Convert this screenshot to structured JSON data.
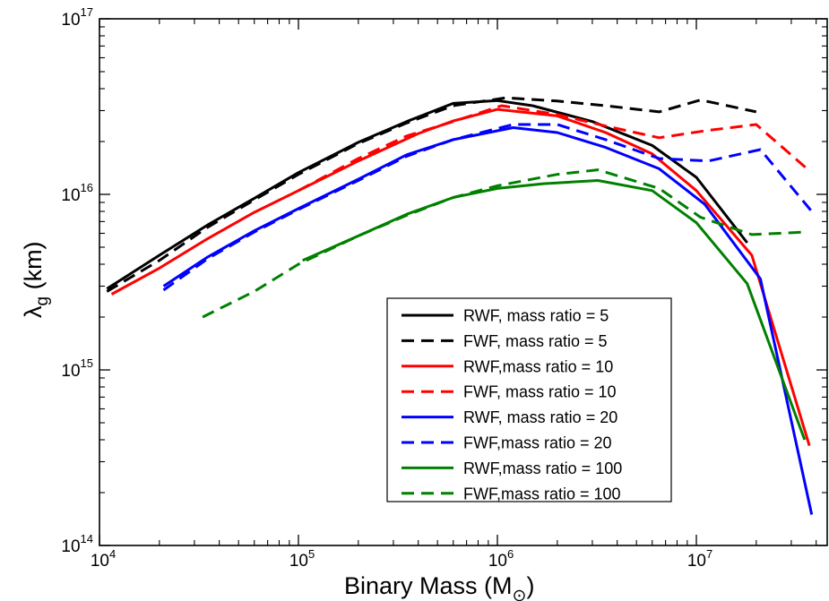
{
  "chart_data": {
    "type": "line",
    "xscale": "log",
    "yscale": "log",
    "xlim": [
      10000,
      50000000
    ],
    "ylim": [
      100000000000000.0,
      1e+17
    ],
    "xlabel": {
      "main": "Binary Mass (M",
      "sub": "⊙",
      "tail": ")"
    },
    "ylabel": {
      "greek": "λ",
      "sub": "g",
      "tail": " (km)"
    },
    "xticks": [
      {
        "value": 10000,
        "base": "10",
        "exp": "4"
      },
      {
        "value": 100000,
        "base": "10",
        "exp": "5"
      },
      {
        "value": 1000000,
        "base": "10",
        "exp": "6"
      },
      {
        "value": 10000000,
        "base": "10",
        "exp": "7"
      }
    ],
    "yticks": [
      {
        "value": 100000000000000.0,
        "base": "10",
        "exp": "14"
      },
      {
        "value": 1000000000000000.0,
        "base": "10",
        "exp": "15"
      },
      {
        "value": 1e+16,
        "base": "10",
        "exp": "16"
      },
      {
        "value": 1e+17,
        "base": "10",
        "exp": "17"
      }
    ],
    "legend_position": "lower-center",
    "series": [
      {
        "name": "RWF, mass ratio = 5",
        "color": "#000000",
        "dash": "solid",
        "x": [
          10900,
          20000,
          35000,
          60000,
          100000,
          200000,
          350000,
          600000,
          1000000,
          1500000,
          3000000,
          6000000,
          10000000,
          18000000
        ],
        "y": [
          2900000000000000.0,
          4500000000000000.0,
          6700000000000000.0,
          9500000000000000.0,
          1.33e+16,
          1.98e+16,
          2.6e+16,
          3.3e+16,
          3.42e+16,
          3.2e+16,
          2.6e+16,
          1.9e+16,
          1.25e+16,
          5300000000000000.0
        ]
      },
      {
        "name": "FWF, mass ratio = 5",
        "color": "#000000",
        "dash": "dashed",
        "x": [
          10900,
          20000,
          35000,
          60000,
          100000,
          200000,
          350000,
          600000,
          1100000,
          2000000,
          3500000,
          6500000,
          10500000,
          20000000
        ],
        "y": [
          2800000000000000.0,
          4200000000000000.0,
          6500000000000000.0,
          9300000000000000.0,
          1.3e+16,
          1.95e+16,
          2.55e+16,
          3.2e+16,
          3.55e+16,
          3.4e+16,
          3.2e+16,
          2.95e+16,
          3.45e+16,
          2.95e+16
        ]
      },
      {
        "name": "RWF,mass ratio = 10",
        "color": "#ff0000",
        "dash": "solid",
        "x": [
          11500,
          20000,
          35000,
          60000,
          100000,
          200000,
          400000,
          600000,
          1000000,
          2000000,
          3500000,
          6000000,
          10000000,
          19000000,
          37000000
        ],
        "y": [
          2700000000000000.0,
          3800000000000000.0,
          5600000000000000.0,
          7900000000000000.0,
          1.05e+16,
          1.55e+16,
          2.22e+16,
          2.62e+16,
          3.05e+16,
          2.8e+16,
          2.25e+16,
          1.7e+16,
          1.05e+16,
          4500000000000000.0,
          370000000000000.0
        ]
      },
      {
        "name": "FWF, mass ratio = 10",
        "color": "#ff0000",
        "dash": "dashed",
        "x": [
          100000,
          200000,
          350000,
          600000,
          1050000,
          2000000,
          3500000,
          6500000,
          11000000,
          20000000,
          36000000
        ],
        "y": [
          1.05e+16,
          1.6e+16,
          2.15e+16,
          2.6e+16,
          3.2e+16,
          2.85e+16,
          2.45e+16,
          2.1e+16,
          2.3e+16,
          2.5e+16,
          1.4e+16
        ]
      },
      {
        "name": "RWF, mass ratio = 20",
        "color": "#0000ff",
        "dash": "solid",
        "x": [
          21000,
          35000,
          60000,
          100000,
          200000,
          350000,
          600000,
          1200000,
          2000000,
          3500000,
          6500000,
          11000000,
          21000000,
          38000000
        ],
        "y": [
          3000000000000000.0,
          4400000000000000.0,
          6200000000000000.0,
          8300000000000000.0,
          1.22e+16,
          1.68e+16,
          2.05e+16,
          2.4e+16,
          2.25e+16,
          1.85e+16,
          1.4e+16,
          8800000000000000.0,
          3300000000000000.0,
          150000000000000.0
        ]
      },
      {
        "name": "FWF,mass ratio = 20",
        "color": "#0000ff",
        "dash": "dashed",
        "x": [
          21000,
          35000,
          60000,
          100000,
          200000,
          350000,
          600000,
          1200000,
          2000000,
          3500000,
          6500000,
          11500000,
          21000000,
          38000000
        ],
        "y": [
          2850000000000000.0,
          4300000000000000.0,
          6100000000000000.0,
          8200000000000000.0,
          1.2e+16,
          1.65e+16,
          2.05e+16,
          2.5e+16,
          2.5e+16,
          2.05e+16,
          1.6e+16,
          1.55e+16,
          1.8e+16,
          8000000000000000.0
        ]
      },
      {
        "name": "RWF,mass ratio = 100",
        "color": "#008000",
        "dash": "solid",
        "x": [
          105000,
          200000,
          350000,
          600000,
          1000000,
          1700000,
          3200000,
          6000000,
          10000000,
          18000000,
          35000000
        ],
        "y": [
          4200000000000000.0,
          5800000000000000.0,
          7700000000000000.0,
          9600000000000000.0,
          1.08e+16,
          1.15e+16,
          1.2e+16,
          1.05e+16,
          6900000000000000.0,
          3100000000000000.0,
          400000000000000.0
        ]
      },
      {
        "name": "FWF,mass ratio = 100",
        "color": "#008000",
        "dash": "dashed",
        "x": [
          33000,
          60000,
          100000,
          200000,
          350000,
          600000,
          1000000,
          2000000,
          3200000,
          6500000,
          10500000,
          19000000,
          35000000
        ],
        "y": [
          2000000000000000.0,
          2800000000000000.0,
          4000000000000000.0,
          5800000000000000.0,
          7600000000000000.0,
          9600000000000000.0,
          1.12e+16,
          1.3e+16,
          1.38e+16,
          1.08e+16,
          7400000000000000.0,
          5900000000000000.0,
          6100000000000000.0
        ]
      }
    ]
  }
}
